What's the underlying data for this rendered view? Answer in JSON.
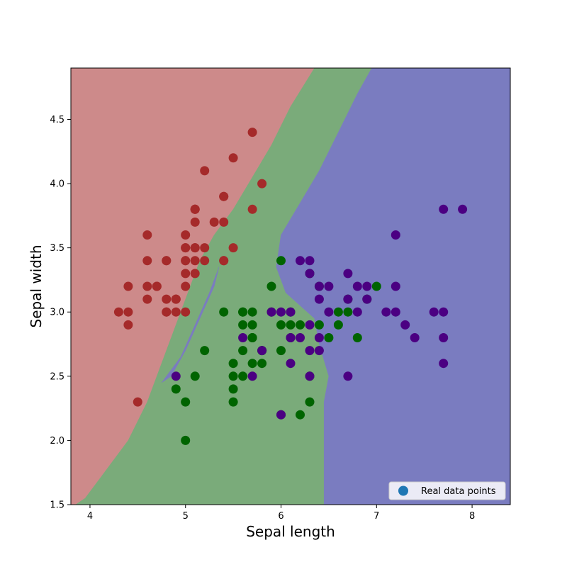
{
  "chart_data": {
    "type": "scatter",
    "xlabel": "Sepal length",
    "ylabel": "Sepal width",
    "xlim": [
      3.8,
      8.4
    ],
    "ylim": [
      1.5,
      4.9
    ],
    "xticks": [
      "4",
      "5",
      "6",
      "7",
      "8"
    ],
    "yticks": [
      "1.5",
      "2.0",
      "2.5",
      "3.0",
      "3.5",
      "4.0",
      "4.5"
    ],
    "grid": false,
    "legend": {
      "placement": "bottom-right",
      "label": "Real data points",
      "marker_color": "#1f77b4"
    },
    "regions": [
      {
        "class": "setosa",
        "color": "#cd8a8a",
        "polygon": [
          [
            3.8,
            1.5
          ],
          [
            3.8,
            4.9
          ],
          [
            6.35,
            4.9
          ],
          [
            6.1,
            4.6
          ],
          [
            5.9,
            4.3
          ],
          [
            5.7,
            4.05
          ],
          [
            5.5,
            3.8
          ],
          [
            5.3,
            3.6
          ],
          [
            5.15,
            3.4
          ],
          [
            5.05,
            3.2
          ],
          [
            4.95,
            3.0
          ],
          [
            4.85,
            2.8
          ],
          [
            4.75,
            2.6
          ],
          [
            4.6,
            2.3
          ],
          [
            4.4,
            2.0
          ],
          [
            4.15,
            1.75
          ],
          [
            3.95,
            1.55
          ],
          [
            3.85,
            1.5
          ]
        ]
      },
      {
        "class": "versicolor",
        "color": "#7aab7a",
        "polygon": [
          [
            3.85,
            1.5
          ],
          [
            3.95,
            1.55
          ],
          [
            4.15,
            1.75
          ],
          [
            4.4,
            2.0
          ],
          [
            4.6,
            2.3
          ],
          [
            4.75,
            2.6
          ],
          [
            4.85,
            2.8
          ],
          [
            4.95,
            3.0
          ],
          [
            5.05,
            3.2
          ],
          [
            5.15,
            3.4
          ],
          [
            5.3,
            3.6
          ],
          [
            5.5,
            3.8
          ],
          [
            5.7,
            4.05
          ],
          [
            5.9,
            4.3
          ],
          [
            6.1,
            4.6
          ],
          [
            6.35,
            4.9
          ],
          [
            6.95,
            4.9
          ],
          [
            6.8,
            4.7
          ],
          [
            6.6,
            4.4
          ],
          [
            6.4,
            4.1
          ],
          [
            6.2,
            3.85
          ],
          [
            6.0,
            3.6
          ],
          [
            5.95,
            3.35
          ],
          [
            6.05,
            3.15
          ],
          [
            6.2,
            3.05
          ],
          [
            6.35,
            2.95
          ],
          [
            6.4,
            2.75
          ],
          [
            6.5,
            2.5
          ],
          [
            6.45,
            2.3
          ],
          [
            6.45,
            2.0
          ],
          [
            6.45,
            1.5
          ]
        ]
      },
      {
        "class": "virginica",
        "color": "#7a7cc0",
        "polygon": [
          [
            6.45,
            1.5
          ],
          [
            6.45,
            2.0
          ],
          [
            6.45,
            2.3
          ],
          [
            6.5,
            2.5
          ],
          [
            6.4,
            2.75
          ],
          [
            6.35,
            2.95
          ],
          [
            6.2,
            3.05
          ],
          [
            6.05,
            3.15
          ],
          [
            5.95,
            3.35
          ],
          [
            6.0,
            3.6
          ],
          [
            6.2,
            3.85
          ],
          [
            6.4,
            4.1
          ],
          [
            6.6,
            4.4
          ],
          [
            6.8,
            4.7
          ],
          [
            6.95,
            4.9
          ],
          [
            8.4,
            4.9
          ],
          [
            8.4,
            1.5
          ]
        ]
      },
      {
        "class": "virginica-sliver",
        "color": "#7a7cc0",
        "polygon": [
          [
            4.75,
            2.45
          ],
          [
            4.95,
            2.65
          ],
          [
            5.1,
            2.9
          ],
          [
            5.25,
            3.15
          ],
          [
            5.35,
            3.35
          ],
          [
            5.3,
            3.2
          ],
          [
            5.15,
            2.95
          ],
          [
            5.0,
            2.7
          ],
          [
            4.85,
            2.5
          ]
        ]
      }
    ],
    "series": [
      {
        "class": "setosa",
        "color": "#a52a2a",
        "points": [
          [
            5.1,
            3.5
          ],
          [
            4.9,
            3.0
          ],
          [
            4.7,
            3.2
          ],
          [
            4.6,
            3.1
          ],
          [
            5.0,
            3.6
          ],
          [
            5.4,
            3.9
          ],
          [
            4.6,
            3.4
          ],
          [
            5.0,
            3.4
          ],
          [
            4.4,
            2.9
          ],
          [
            4.9,
            3.1
          ],
          [
            5.4,
            3.7
          ],
          [
            4.8,
            3.4
          ],
          [
            4.8,
            3.0
          ],
          [
            4.3,
            3.0
          ],
          [
            5.8,
            4.0
          ],
          [
            5.7,
            4.4
          ],
          [
            5.4,
            3.9
          ],
          [
            5.1,
            3.5
          ],
          [
            5.7,
            3.8
          ],
          [
            5.1,
            3.8
          ],
          [
            5.4,
            3.4
          ],
          [
            5.1,
            3.7
          ],
          [
            4.6,
            3.6
          ],
          [
            5.1,
            3.3
          ],
          [
            4.8,
            3.4
          ],
          [
            5.0,
            3.0
          ],
          [
            5.0,
            3.4
          ],
          [
            5.2,
            3.5
          ],
          [
            5.2,
            3.4
          ],
          [
            4.7,
            3.2
          ],
          [
            4.8,
            3.1
          ],
          [
            5.4,
            3.4
          ],
          [
            5.2,
            4.1
          ],
          [
            5.5,
            4.2
          ],
          [
            4.9,
            3.1
          ],
          [
            5.0,
            3.2
          ],
          [
            5.5,
            3.5
          ],
          [
            4.4,
            3.0
          ],
          [
            5.1,
            3.4
          ],
          [
            5.0,
            3.5
          ],
          [
            4.5,
            2.3
          ],
          [
            4.4,
            3.2
          ],
          [
            5.0,
            3.5
          ],
          [
            5.1,
            3.8
          ],
          [
            4.8,
            3.0
          ],
          [
            5.1,
            3.8
          ],
          [
            4.6,
            3.2
          ],
          [
            5.3,
            3.7
          ],
          [
            5.0,
            3.3
          ]
        ]
      },
      {
        "class": "versicolor",
        "color": "#006400",
        "points": [
          [
            7.0,
            3.2
          ],
          [
            6.4,
            3.2
          ],
          [
            6.9,
            3.1
          ],
          [
            5.5,
            2.3
          ],
          [
            6.5,
            2.8
          ],
          [
            5.7,
            2.8
          ],
          [
            6.3,
            3.3
          ],
          [
            4.9,
            2.4
          ],
          [
            6.6,
            2.9
          ],
          [
            5.2,
            2.7
          ],
          [
            5.0,
            2.0
          ],
          [
            5.9,
            3.0
          ],
          [
            6.0,
            2.2
          ],
          [
            6.1,
            2.9
          ],
          [
            5.6,
            2.9
          ],
          [
            6.7,
            3.1
          ],
          [
            5.6,
            3.0
          ],
          [
            5.8,
            2.7
          ],
          [
            6.2,
            2.2
          ],
          [
            5.6,
            2.5
          ],
          [
            5.9,
            3.2
          ],
          [
            6.1,
            2.8
          ],
          [
            6.3,
            2.5
          ],
          [
            6.4,
            2.9
          ],
          [
            6.6,
            3.0
          ],
          [
            6.8,
            2.8
          ],
          [
            6.7,
            3.0
          ],
          [
            6.0,
            2.9
          ],
          [
            5.7,
            2.6
          ],
          [
            5.5,
            2.4
          ],
          [
            5.8,
            2.7
          ],
          [
            6.0,
            2.7
          ],
          [
            5.4,
            3.0
          ],
          [
            6.0,
            3.4
          ],
          [
            6.3,
            2.3
          ],
          [
            5.6,
            3.0
          ],
          [
            5.5,
            2.5
          ],
          [
            5.5,
            2.6
          ],
          [
            6.1,
            3.0
          ],
          [
            5.8,
            2.6
          ],
          [
            5.0,
            2.3
          ],
          [
            5.6,
            2.7
          ],
          [
            5.7,
            3.0
          ],
          [
            5.7,
            2.9
          ],
          [
            6.2,
            2.9
          ],
          [
            5.1,
            2.5
          ],
          [
            5.7,
            2.8
          ]
        ]
      },
      {
        "class": "virginica",
        "color": "#4b0082",
        "points": [
          [
            6.3,
            3.3
          ],
          [
            5.8,
            2.7
          ],
          [
            7.1,
            3.0
          ],
          [
            6.3,
            2.9
          ],
          [
            6.5,
            3.0
          ],
          [
            7.6,
            3.0
          ],
          [
            4.9,
            2.5
          ],
          [
            7.3,
            2.9
          ],
          [
            6.7,
            2.5
          ],
          [
            7.2,
            3.6
          ],
          [
            6.5,
            3.2
          ],
          [
            6.4,
            2.7
          ],
          [
            6.8,
            3.0
          ],
          [
            5.7,
            2.5
          ],
          [
            6.4,
            3.2
          ],
          [
            7.7,
            3.8
          ],
          [
            7.7,
            2.6
          ],
          [
            6.0,
            2.2
          ],
          [
            6.9,
            3.2
          ],
          [
            5.6,
            2.8
          ],
          [
            7.7,
            2.8
          ],
          [
            6.3,
            2.7
          ],
          [
            6.7,
            3.3
          ],
          [
            7.2,
            3.2
          ],
          [
            6.2,
            2.8
          ],
          [
            6.1,
            3.0
          ],
          [
            6.4,
            2.8
          ],
          [
            7.2,
            3.0
          ],
          [
            7.4,
            2.8
          ],
          [
            7.9,
            3.8
          ],
          [
            6.1,
            2.6
          ],
          [
            7.7,
            3.0
          ],
          [
            6.3,
            3.4
          ],
          [
            6.4,
            3.1
          ],
          [
            6.0,
            3.0
          ],
          [
            6.9,
            3.1
          ],
          [
            6.7,
            3.1
          ],
          [
            6.8,
            3.2
          ],
          [
            6.3,
            2.5
          ],
          [
            6.2,
            3.4
          ],
          [
            5.9,
            3.0
          ],
          [
            6.1,
            2.8
          ]
        ]
      }
    ]
  }
}
